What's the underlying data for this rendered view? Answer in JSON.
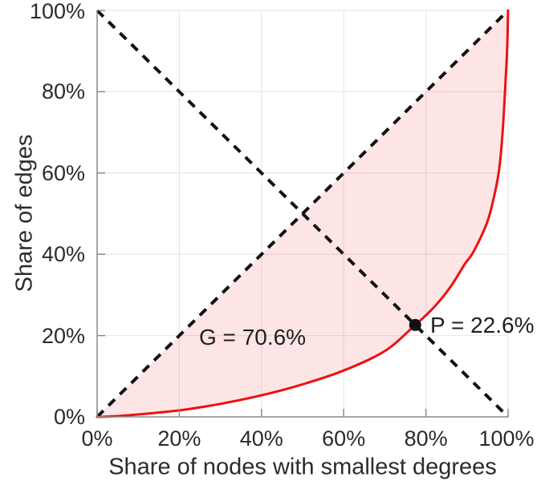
{
  "chart_data": {
    "type": "line",
    "title": "",
    "xlabel": "Share of nodes with smallest degrees",
    "ylabel": "Share of edges",
    "xlim": [
      0,
      100
    ],
    "ylim": [
      0,
      100
    ],
    "grid": true,
    "legend": "none",
    "xtick_values": [
      0,
      20,
      40,
      60,
      80,
      100
    ],
    "ytick_values": [
      0,
      20,
      40,
      60,
      80,
      100
    ],
    "xtick_labels": [
      "0%",
      "20%",
      "40%",
      "60%",
      "80%",
      "100%"
    ],
    "ytick_labels": [
      "0%",
      "20%",
      "40%",
      "60%",
      "80%",
      "100%"
    ],
    "colors": {
      "curve": "#ee1111",
      "fill": "rgba(238,17,17,0.11)",
      "dashed": "#111111",
      "grid": "#e4e4e4",
      "axis": "#8a8a8a",
      "point": "#111111",
      "text": "#2b2b2b"
    },
    "series": [
      {
        "name": "lorenz-curve",
        "style": "solid",
        "color": "#ee1111",
        "points": [
          [
            0,
            0
          ],
          [
            2,
            0.05
          ],
          [
            5,
            0.2
          ],
          [
            10,
            0.6
          ],
          [
            20,
            1.6
          ],
          [
            30,
            3.2
          ],
          [
            40,
            5.3
          ],
          [
            50,
            8.0
          ],
          [
            60,
            11.4
          ],
          [
            70,
            16.2
          ],
          [
            77.4,
            22.6
          ],
          [
            82,
            27.0
          ],
          [
            86,
            32.0
          ],
          [
            89.4,
            37.5
          ],
          [
            91.5,
            40.5
          ],
          [
            94.7,
            47.3
          ],
          [
            96.2,
            52.5
          ],
          [
            97.7,
            60.0
          ],
          [
            98.6,
            69.0
          ],
          [
            99.4,
            82.8
          ],
          [
            99.8,
            91.5
          ],
          [
            100,
            100
          ]
        ]
      },
      {
        "name": "equality-diagonal",
        "style": "dashed",
        "color": "#111111",
        "points": [
          [
            0,
            0
          ],
          [
            100,
            100
          ]
        ]
      },
      {
        "name": "anti-diagonal",
        "style": "dashed",
        "color": "#111111",
        "points": [
          [
            0,
            100
          ],
          [
            100,
            0
          ]
        ]
      }
    ],
    "gini_percent": 70.6,
    "gini_label": "G = 70.6%",
    "p_percent": 22.6,
    "p_label": "P = 22.6%",
    "intersection_point": {
      "x_percent": 77.4,
      "y_percent": 22.6
    }
  }
}
